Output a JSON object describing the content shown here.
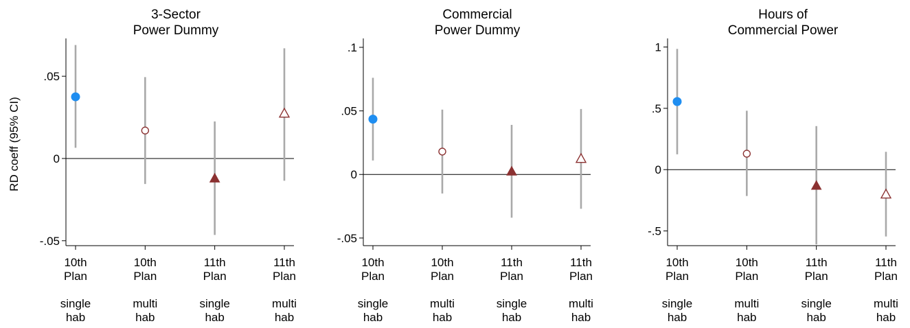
{
  "figure": {
    "ylabel": "RD coeff (95% CI)"
  },
  "chart_data": [
    {
      "type": "scatter",
      "title": [
        "3-Sector",
        "Power Dummy"
      ],
      "ylabel": "RD coeff (95% CI)",
      "yticks": [
        -0.05,
        0,
        0.05
      ],
      "ytick_labels": [
        "-.05",
        "0",
        ".05"
      ],
      "ylim": [
        -0.053,
        0.073
      ],
      "categories": [
        [
          "10th",
          "Plan",
          "",
          "single",
          "hab"
        ],
        [
          "10th",
          "Plan",
          "",
          "multi",
          "hab"
        ],
        [
          "11th",
          "Plan",
          "",
          "single",
          "hab"
        ],
        [
          "11th",
          "Plan",
          "",
          "multi",
          "hab"
        ]
      ],
      "points": [
        {
          "estimate": 0.0375,
          "ci_low": 0.0065,
          "ci_high": 0.069,
          "marker": "filled-circle",
          "color": "#1f8ef1"
        },
        {
          "estimate": 0.017,
          "ci_low": -0.0155,
          "ci_high": 0.0495,
          "marker": "hollow-circle",
          "color": "#8b3131"
        },
        {
          "estimate": -0.012,
          "ci_low": -0.0465,
          "ci_high": 0.0225,
          "marker": "filled-triangle",
          "color": "#8b3131"
        },
        {
          "estimate": 0.0275,
          "ci_low": -0.0135,
          "ci_high": 0.067,
          "marker": "hollow-triangle",
          "color": "#8b3131"
        }
      ]
    },
    {
      "type": "scatter",
      "title": [
        "Commercial",
        "Power Dummy"
      ],
      "yticks": [
        -0.05,
        0,
        0.05,
        0.1
      ],
      "ytick_labels": [
        "-.05",
        "0",
        ".05",
        ".1"
      ],
      "ylim": [
        -0.056,
        0.107
      ],
      "categories": [
        [
          "10th",
          "Plan",
          "",
          "single",
          "hab"
        ],
        [
          "10th",
          "Plan",
          "",
          "multi",
          "hab"
        ],
        [
          "11th",
          "Plan",
          "",
          "single",
          "hab"
        ],
        [
          "11th",
          "Plan",
          "",
          "multi",
          "hab"
        ]
      ],
      "points": [
        {
          "estimate": 0.0435,
          "ci_low": 0.011,
          "ci_high": 0.076,
          "marker": "filled-circle",
          "color": "#1f8ef1"
        },
        {
          "estimate": 0.018,
          "ci_low": -0.015,
          "ci_high": 0.051,
          "marker": "hollow-circle",
          "color": "#8b3131"
        },
        {
          "estimate": 0.0025,
          "ci_low": -0.034,
          "ci_high": 0.039,
          "marker": "filled-triangle",
          "color": "#8b3131"
        },
        {
          "estimate": 0.0125,
          "ci_low": -0.027,
          "ci_high": 0.0515,
          "marker": "hollow-triangle",
          "color": "#8b3131"
        }
      ]
    },
    {
      "type": "scatter",
      "title": [
        "Hours of",
        "Commercial Power"
      ],
      "yticks": [
        -0.5,
        0,
        0.5,
        1
      ],
      "ytick_labels": [
        "-.5",
        "0",
        ".5",
        "1"
      ],
      "ylim": [
        -0.62,
        1.07
      ],
      "categories": [
        [
          "10th",
          "Plan",
          "",
          "single",
          "hab"
        ],
        [
          "10th",
          "Plan",
          "",
          "multi",
          "hab"
        ],
        [
          "11th",
          "Plan",
          "",
          "single",
          "hab"
        ],
        [
          "11th",
          "Plan",
          "",
          "multi",
          "hab"
        ]
      ],
      "points": [
        {
          "estimate": 0.555,
          "ci_low": 0.125,
          "ci_high": 0.985,
          "marker": "filled-circle",
          "color": "#1f8ef1"
        },
        {
          "estimate": 0.13,
          "ci_low": -0.215,
          "ci_high": 0.48,
          "marker": "hollow-circle",
          "color": "#8b3131"
        },
        {
          "estimate": -0.13,
          "ci_low": -0.61,
          "ci_high": 0.355,
          "marker": "filled-triangle",
          "color": "#8b3131"
        },
        {
          "estimate": -0.2,
          "ci_low": -0.545,
          "ci_high": 0.145,
          "marker": "hollow-triangle",
          "color": "#8b3131"
        }
      ]
    }
  ]
}
